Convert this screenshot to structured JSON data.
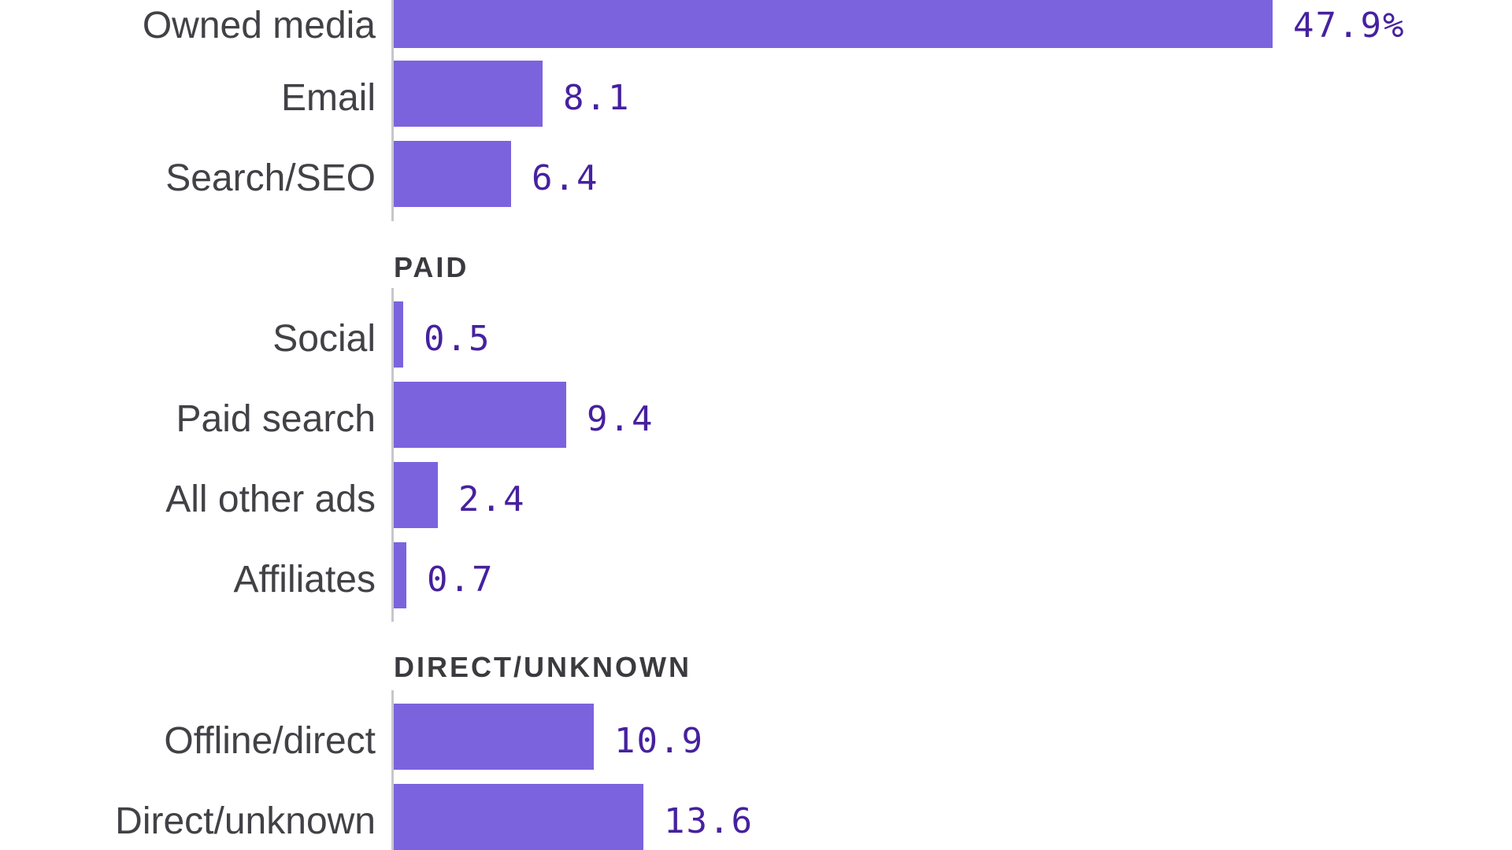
{
  "chart_data": {
    "type": "bar",
    "orientation": "horizontal",
    "title": "",
    "xlabel": "",
    "ylabel": "",
    "legend_position": "none",
    "gridlines": false,
    "value_axis": {
      "visible": false,
      "min": 0,
      "approx_max": 61
    },
    "sections": [
      {
        "header": "",
        "rows": [
          {
            "label": "Owned media",
            "value": 47.9,
            "display": "47.9%"
          },
          {
            "label": "Email",
            "value": 8.1,
            "display": "8.1"
          },
          {
            "label": "Search/SEO",
            "value": 6.4,
            "display": "6.4"
          }
        ]
      },
      {
        "header": "PAID",
        "rows": [
          {
            "label": "Social",
            "value": 0.5,
            "display": "0.5"
          },
          {
            "label": "Paid search",
            "value": 9.4,
            "display": "9.4"
          },
          {
            "label": "All other ads",
            "value": 2.4,
            "display": "2.4"
          },
          {
            "label": "Affiliates",
            "value": 0.7,
            "display": "0.7"
          }
        ]
      },
      {
        "header": "DIRECT/UNKNOWN",
        "rows": [
          {
            "label": "Offline/direct",
            "value": 10.9,
            "display": "10.9"
          },
          {
            "label": "Direct/unknown",
            "value": 13.6,
            "display": "13.6"
          }
        ]
      }
    ],
    "colors": {
      "bar": "#7c63de",
      "value_text": "#46219e",
      "category_text": "#414146",
      "section_header_text": "#3a3a3f",
      "axis_line": "#c7c7ca",
      "background": "#ffffff"
    },
    "notes": "Cropped screenshot: first bar and its section header are cut off at the top edge; last bar is cut off at the bottom edge."
  }
}
